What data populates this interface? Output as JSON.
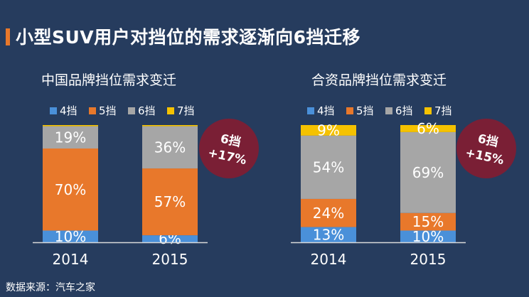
{
  "title": "小型SUV用户对挡位的需求逐渐向6挡迁移",
  "footer": "数据来源：汽车之家",
  "colors": {
    "background": "#263c5e",
    "accent": "#e8782b",
    "s4": "#4a90d9",
    "s5": "#e8782b",
    "s6": "#a6a6a6",
    "s7": "#f5c200",
    "badge": "#7a1f35"
  },
  "chart_data": [
    {
      "type": "bar",
      "stacked": true,
      "title": "中国品牌挡位需求变迁",
      "categories": [
        "2014",
        "2015"
      ],
      "series": [
        {
          "name": "4挡",
          "values": [
            10,
            6
          ],
          "labels": [
            "10%",
            "6%"
          ]
        },
        {
          "name": "5挡",
          "values": [
            70,
            57
          ],
          "labels": [
            "70%",
            "57%"
          ]
        },
        {
          "name": "6挡",
          "values": [
            19,
            36
          ],
          "labels": [
            "19%",
            "36%"
          ]
        },
        {
          "name": "7挡",
          "values": [
            1,
            1
          ],
          "labels": [
            "",
            ""
          ]
        }
      ],
      "ylim": [
        0,
        100
      ],
      "badge": {
        "line1": "6挡",
        "line2": "+17%"
      }
    },
    {
      "type": "bar",
      "stacked": true,
      "title": "合资品牌挡位需求变迁",
      "categories": [
        "2014",
        "2015"
      ],
      "series": [
        {
          "name": "4挡",
          "values": [
            13,
            10
          ],
          "labels": [
            "13%",
            "10%"
          ]
        },
        {
          "name": "5挡",
          "values": [
            24,
            15
          ],
          "labels": [
            "24%",
            "15%"
          ]
        },
        {
          "name": "6挡",
          "values": [
            54,
            69
          ],
          "labels": [
            "54%",
            "69%"
          ]
        },
        {
          "name": "7挡",
          "values": [
            9,
            6
          ],
          "labels": [
            "9%",
            "6%"
          ]
        }
      ],
      "ylim": [
        0,
        100
      ],
      "badge": {
        "line1": "6挡",
        "line2": "+15%"
      }
    }
  ]
}
